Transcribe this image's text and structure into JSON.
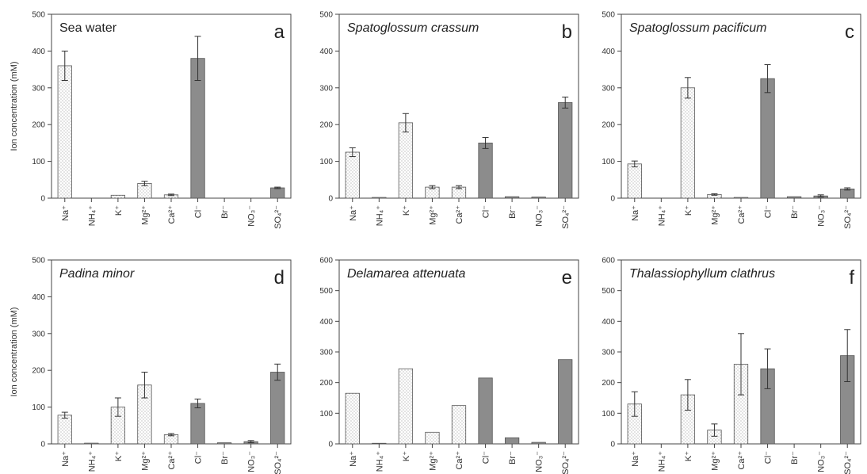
{
  "colors": {
    "anion_bar": "#8c8c8c",
    "cation_bar": "#ffffff",
    "axis": "#444444"
  },
  "chart_data": [
    {
      "type": "bar",
      "panel_letter": "a",
      "title": "Sea water",
      "title_italic": false,
      "ylabel": "Ion concentration  (mM)",
      "ylim": [
        0,
        500
      ],
      "yticks": [
        0,
        100,
        200,
        300,
        400,
        500
      ],
      "categories": [
        "Na⁺",
        "NH₄⁺",
        "K⁺",
        "Mg²⁺",
        "Ca²⁺",
        "Cl⁻",
        "Br⁻",
        "NO₃⁻",
        "SO₄²⁻"
      ],
      "values": [
        360,
        0,
        8,
        40,
        9,
        380,
        0,
        0,
        28
      ],
      "errors": [
        40,
        0,
        0,
        6,
        2,
        60,
        0,
        0,
        2
      ]
    },
    {
      "type": "bar",
      "panel_letter": "b",
      "title": "Spatoglossum crassum",
      "title_italic": true,
      "ylabel": "",
      "ylim": [
        0,
        500
      ],
      "yticks": [
        0,
        100,
        200,
        300,
        400,
        500
      ],
      "categories": [
        "Na⁺",
        "NH₄⁺",
        "K⁺",
        "Mg²⁺",
        "Ca²⁺",
        "Cl⁻",
        "Br⁻",
        "NO₃⁻",
        "SO₄²⁻"
      ],
      "values": [
        125,
        2,
        205,
        30,
        30,
        150,
        4,
        3,
        260
      ],
      "errors": [
        12,
        0,
        25,
        4,
        4,
        15,
        0,
        0,
        15
      ]
    },
    {
      "type": "bar",
      "panel_letter": "c",
      "title": "Spatoglossum pacificum",
      "title_italic": true,
      "ylabel": "",
      "ylim": [
        0,
        500
      ],
      "yticks": [
        0,
        100,
        200,
        300,
        400,
        500
      ],
      "categories": [
        "Na⁺",
        "NH₄⁺",
        "K⁺",
        "Mg²⁺",
        "Ca²⁺",
        "Cl⁻",
        "Br⁻",
        "NO₃⁻",
        "SO₄²⁻"
      ],
      "values": [
        93,
        0,
        300,
        10,
        2,
        325,
        4,
        6,
        25
      ],
      "errors": [
        8,
        0,
        28,
        2,
        0,
        38,
        0,
        3,
        3
      ]
    },
    {
      "type": "bar",
      "panel_letter": "d",
      "title": "Padina minor",
      "title_italic": true,
      "ylabel": "Ion concentration  (mM)",
      "ylim": [
        0,
        500
      ],
      "yticks": [
        0,
        100,
        200,
        300,
        400,
        500
      ],
      "categories": [
        "Na⁺",
        "NH₄⁺",
        "K⁺",
        "Mg²⁺",
        "Ca²⁺",
        "Cl⁻",
        "Br⁻",
        "NO₃⁻",
        "SO₄²⁻"
      ],
      "values": [
        78,
        2,
        100,
        160,
        25,
        110,
        3,
        6,
        195
      ],
      "errors": [
        8,
        0,
        25,
        35,
        3,
        12,
        0,
        3,
        22
      ]
    },
    {
      "type": "bar",
      "panel_letter": "e",
      "title": "Delamarea attenuata",
      "title_italic": true,
      "ylabel": "",
      "ylim": [
        0,
        600
      ],
      "yticks": [
        0,
        100,
        200,
        300,
        400,
        500,
        600
      ],
      "categories": [
        "Na⁺",
        "NH₄⁺",
        "K⁺",
        "Mg²⁺",
        "Ca²⁺",
        "Cl⁻",
        "Br⁻",
        "NO₃⁻",
        "SO₄²⁻"
      ],
      "values": [
        165,
        2,
        245,
        38,
        125,
        215,
        20,
        5,
        275
      ],
      "errors": [
        0,
        0,
        0,
        0,
        0,
        0,
        0,
        0,
        0
      ]
    },
    {
      "type": "bar",
      "panel_letter": "f",
      "title": "Thalassiophyllum clathrus",
      "title_italic": true,
      "ylabel": "",
      "ylim": [
        0,
        600
      ],
      "yticks": [
        0,
        100,
        200,
        300,
        400,
        500,
        600
      ],
      "categories": [
        "Na⁺",
        "NH₄⁺",
        "K⁺",
        "Mg²⁺",
        "Ca²⁺",
        "Cl⁻",
        "Br⁻",
        "NO₃⁻",
        "SO₄²⁻"
      ],
      "values": [
        130,
        0,
        160,
        45,
        260,
        245,
        0,
        0,
        288
      ],
      "errors": [
        40,
        0,
        50,
        20,
        100,
        65,
        0,
        0,
        85
      ]
    }
  ]
}
